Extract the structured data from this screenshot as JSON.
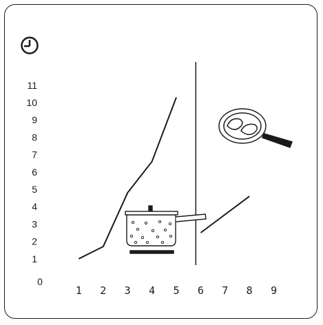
{
  "icons": {
    "clock": "clock-icon",
    "pot": "boiling-pot-icon",
    "pan": "frying-pan-icon"
  },
  "colors": {
    "stroke": "#1a1a1a",
    "background": "#ffffff"
  },
  "chart_data": {
    "type": "line",
    "origin_label": "0",
    "x_ticks": [
      "1",
      "2",
      "3",
      "4",
      "5",
      "6",
      "7",
      "8",
      "9"
    ],
    "y_ticks": [
      "1",
      "2",
      "3",
      "4",
      "5",
      "6",
      "7",
      "8",
      "9",
      "10",
      "11"
    ],
    "xlim": [
      0,
      9
    ],
    "ylim": [
      0,
      11.6
    ],
    "divider_x": 5.8,
    "series": [
      {
        "points": [
          [
            1,
            1
          ],
          [
            2,
            1.7
          ],
          [
            3,
            4.8
          ],
          [
            4,
            6.6
          ],
          [
            5,
            10.3
          ]
        ]
      },
      {
        "points": [
          [
            6,
            2.5
          ],
          [
            8,
            4.6
          ]
        ]
      }
    ]
  }
}
